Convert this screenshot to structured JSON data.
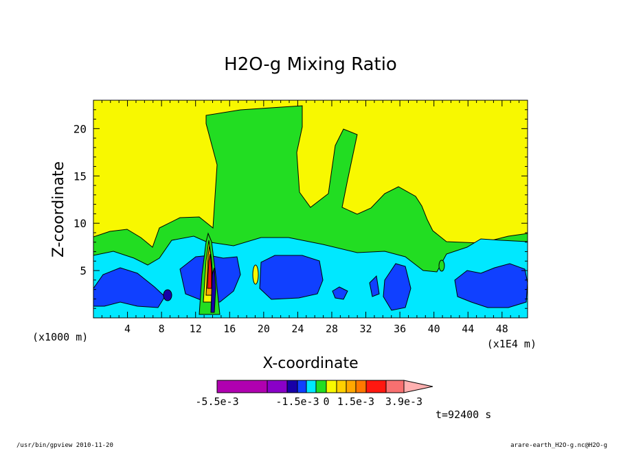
{
  "chart_data": {
    "type": "contour",
    "title": "H2O-g Mixing Ratio",
    "xlabel": "X-coordinate",
    "ylabel": "Z-coordinate",
    "x_unit": "(x1000 m)",
    "x_scale_note": "(x1E4 m)",
    "xlim": [
      0,
      51
    ],
    "ylim": [
      0,
      23
    ],
    "x_ticks": [
      "4",
      "8",
      "12",
      "16",
      "20",
      "24",
      "28",
      "32",
      "36",
      "40",
      "44",
      "48"
    ],
    "y_ticks": [
      "5",
      "10",
      "15",
      "20"
    ],
    "colorbar": {
      "colors": [
        "#b000b0",
        "#8a00c8",
        "#1800a8",
        "#1040ff",
        "#00e8ff",
        "#22dd22",
        "#f8f800",
        "#ffd000",
        "#ffa800",
        "#ff7800",
        "#ff1810",
        "#f87070",
        "#ffb0b0"
      ],
      "labels": [
        "-5.5e-3",
        "-1.5e-3",
        "0",
        "1.5e-3",
        "3.9e-3"
      ]
    },
    "time_label": "t=92400 s"
  },
  "footer": {
    "left": "/usr/bin/gpview   2010-11-20",
    "right": "arare-earth_H2O-g.nc@H2O-g"
  }
}
